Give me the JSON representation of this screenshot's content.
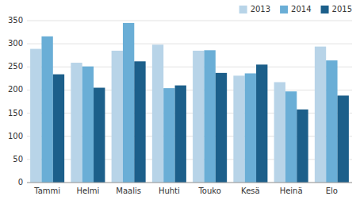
{
  "chart_data": {
    "type": "bar",
    "categories": [
      "Tammi",
      "Helmi",
      "Maalis",
      "Huhti",
      "Touko",
      "Kesä",
      "Heinä",
      "Elo"
    ],
    "series": [
      {
        "name": "2013",
        "color": "#b8d4e8",
        "values": [
          289,
          259,
          285,
          298,
          285,
          231,
          217,
          294
        ]
      },
      {
        "name": "2014",
        "color": "#6aaed6",
        "values": [
          316,
          251,
          345,
          204,
          286,
          236,
          197,
          264
        ]
      },
      {
        "name": "2015",
        "color": "#1c5f8a",
        "values": [
          234,
          205,
          262,
          210,
          237,
          255,
          158,
          188
        ]
      }
    ],
    "ylim": [
      0,
      350
    ],
    "yticks": [
      0,
      50,
      100,
      150,
      200,
      250,
      300,
      350
    ],
    "grid": true,
    "legend": "upper right"
  }
}
